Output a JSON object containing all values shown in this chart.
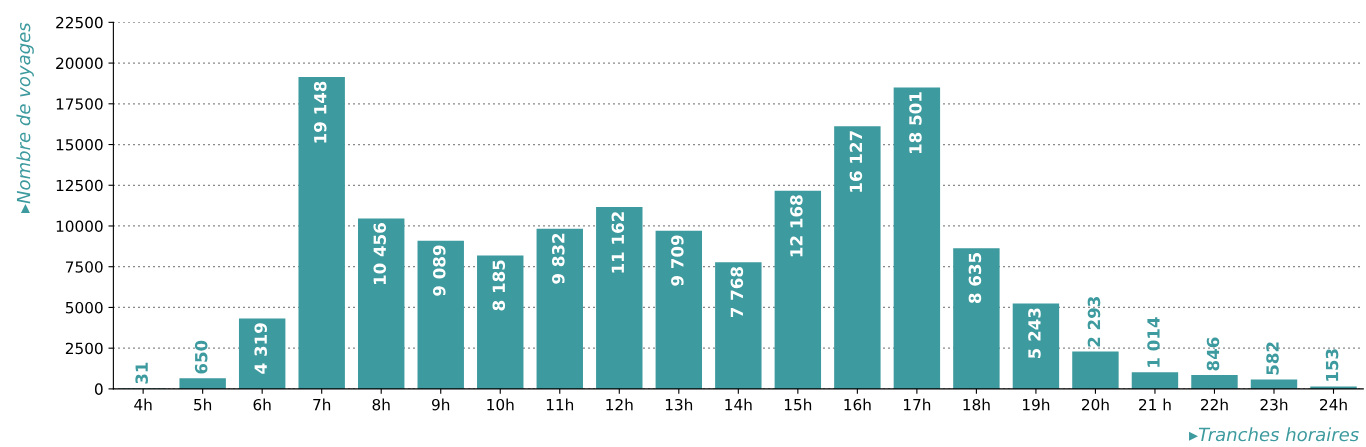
{
  "chart_data": {
    "type": "bar",
    "xlabel": "▸Tranches horaires",
    "ylabel": "▸Nombre de voyages",
    "categories": [
      "4h",
      "5h",
      "6h",
      "7h",
      "8h",
      "9h",
      "10h",
      "11h",
      "12h",
      "13h",
      "14h",
      "15h",
      "16h",
      "17h",
      "18h",
      "19h",
      "20h",
      "21 h",
      "22h",
      "23h",
      "24h"
    ],
    "values": [
      31,
      650,
      4319,
      19148,
      10456,
      9089,
      8185,
      9832,
      11162,
      9709,
      7768,
      12168,
      16127,
      18501,
      8635,
      5243,
      2293,
      1014,
      846,
      582,
      153
    ],
    "value_labels": [
      "31",
      "650",
      "4 319",
      "19 148",
      "10 456",
      "9 089",
      "8 185",
      "9 832",
      "11 162",
      "9 709",
      "7 768",
      "12 168",
      "16 127",
      "18 501",
      "8 635",
      "5 243",
      "2 293",
      "1 014",
      "846",
      "582",
      "153"
    ],
    "color": "#3d9a9e",
    "ylim": [
      0,
      22500
    ],
    "yticks": [
      0,
      2500,
      5000,
      7500,
      10000,
      12500,
      15000,
      17500,
      20000,
      22500
    ],
    "grid": "y"
  }
}
